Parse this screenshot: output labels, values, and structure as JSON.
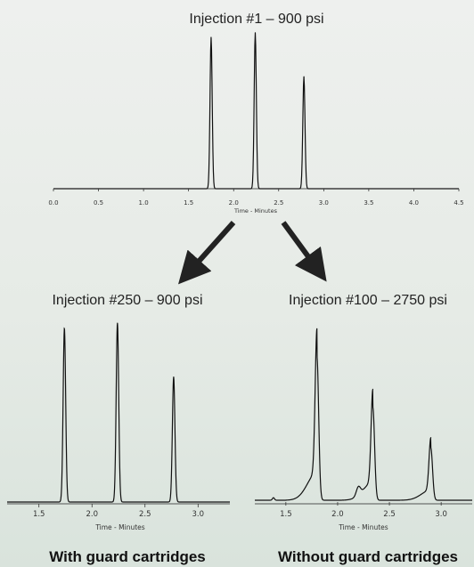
{
  "chart_data": [
    {
      "type": "line",
      "title": "Injection #1 – 900 psi",
      "xlabel": "Time - Minutes",
      "ylabel": "",
      "xlim": [
        0.0,
        4.5
      ],
      "xticks": [
        "0.0",
        "0.5",
        "1.0",
        "1.5",
        "2.0",
        "2.5",
        "3.0",
        "3.5",
        "4.0",
        "4.5"
      ],
      "caption": "",
      "peaks": [
        {
          "x": 1.75,
          "height": 1.0
        },
        {
          "x": 2.24,
          "height": 1.03
        },
        {
          "x": 2.78,
          "height": 0.74
        }
      ]
    },
    {
      "type": "line",
      "title": "Injection #250 – 900 psi",
      "xlabel": "Time - Minutes",
      "ylabel": "",
      "xlim": [
        1.2,
        3.3
      ],
      "xticks": [
        "1.5",
        "2.0",
        "2.5",
        "3.0"
      ],
      "caption": "With guard cartridges",
      "peaks": [
        {
          "x": 1.74,
          "height": 1.0
        },
        {
          "x": 2.24,
          "height": 1.03
        },
        {
          "x": 2.77,
          "height": 0.72
        }
      ]
    },
    {
      "type": "line",
      "title": "Injection #100 – 2750 psi",
      "xlabel": "Time - Minutes",
      "ylabel": "",
      "xlim": [
        1.2,
        3.3
      ],
      "xticks": [
        "1.5",
        "2.0",
        "2.5",
        "3.0"
      ],
      "caption": "Without guard cartridges",
      "peaks": [
        {
          "x": 1.8,
          "height": 0.85
        },
        {
          "x": 2.34,
          "height": 0.55
        },
        {
          "x": 2.9,
          "height": 0.31
        }
      ]
    }
  ]
}
